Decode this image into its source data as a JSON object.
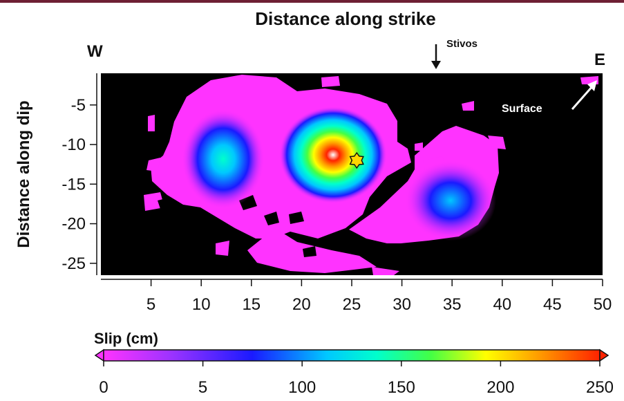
{
  "chart_data": {
    "type": "heatmap",
    "title": "Distance along strike",
    "xlabel": "",
    "ylabel": "Distance along dip",
    "xlim": [
      0,
      50
    ],
    "ylim": [
      -26.5,
      -1
    ],
    "x_ticks": [
      5,
      10,
      15,
      20,
      25,
      30,
      35,
      40,
      45,
      50
    ],
    "y_ticks": [
      -5,
      -10,
      -15,
      -20,
      -25
    ],
    "colorbar": {
      "label": "Slip (cm)",
      "ticks": [
        "0",
        "5",
        "100",
        "150",
        "200",
        "250"
      ],
      "range": [
        0,
        250
      ],
      "colors": [
        "#ff33ff",
        "#9933ff",
        "#1a1aff",
        "#00c8ff",
        "#00ffcc",
        "#44ff44",
        "#ffff00",
        "#ff9900",
        "#ff2200"
      ]
    },
    "annotations": {
      "west": "W",
      "east": "E",
      "town": "Stivos",
      "surface": "Surface"
    },
    "slip_patches": [
      {
        "x": 12.5,
        "y": -12,
        "peak_slip": 110
      },
      {
        "x": 22.5,
        "y": -11,
        "peak_slip": 250
      },
      {
        "x": 34,
        "y": -17,
        "peak_slip": 100
      }
    ],
    "hypocenter": {
      "x": 25.5,
      "y": -12
    }
  },
  "colors": {
    "background": "#000000",
    "low_slip": "#ff33ff",
    "hypocenter": "#ffd700",
    "header_bar": "#6e1f33"
  }
}
